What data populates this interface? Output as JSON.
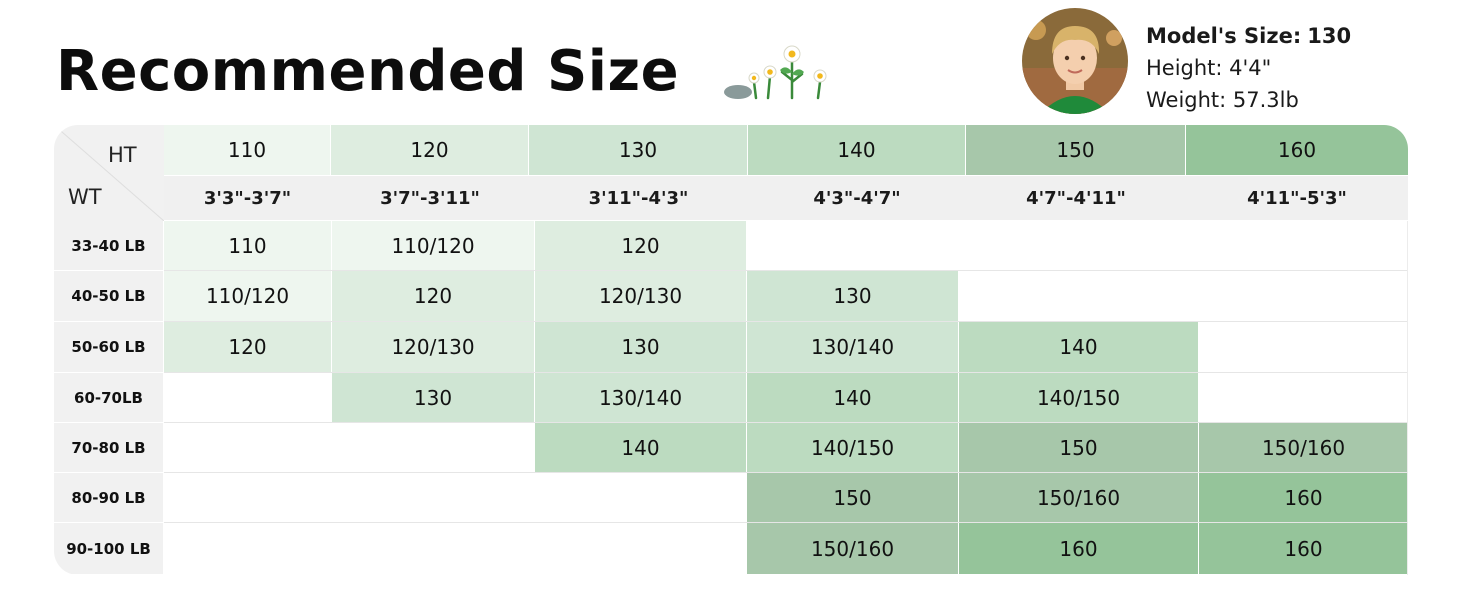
{
  "title": "Recommended Size",
  "model": {
    "size_label": "Model's Size:",
    "size_value": "130",
    "height": "Height: 4'4\"",
    "weight": "Weight: 57.3lb"
  },
  "chart_data": {
    "type": "table",
    "corner": {
      "ht": "HT",
      "wt": "WT"
    },
    "columns": [
      {
        "size": "110",
        "height": "3'3\"-3'7\""
      },
      {
        "size": "120",
        "height": "3'7\"-3'11\""
      },
      {
        "size": "130",
        "height": "3'11\"-4'3\""
      },
      {
        "size": "140",
        "height": "4'3\"-4'7\""
      },
      {
        "size": "150",
        "height": "4'7\"-4'11\""
      },
      {
        "size": "160",
        "height": "4'11\"-5'3\""
      }
    ],
    "rows": [
      {
        "weight": "33-40 LB",
        "cells": [
          "110",
          "110/120",
          "120"
        ]
      },
      {
        "weight": "40-50 LB",
        "cells": [
          "110/120",
          "120",
          "120/130",
          "130"
        ]
      },
      {
        "weight": "50-60 LB",
        "cells": [
          "120",
          "120/130",
          "130",
          "130/140",
          "140"
        ]
      },
      {
        "weight": "60-70LB",
        "cells": [
          "130",
          "130/140",
          "140",
          "140/150"
        ]
      },
      {
        "weight": "70-80 LB",
        "cells": [
          "140",
          "140/150",
          "150",
          "150/160"
        ]
      },
      {
        "weight": "80-90 LB",
        "cells": [
          "150",
          "150/160",
          "160"
        ]
      },
      {
        "weight": "90-100 LB",
        "cells": [
          "150/160",
          "160",
          "160"
        ]
      }
    ]
  },
  "colors": {
    "size_110": "#eef6ef",
    "size_120": "#deede0",
    "size_130": "#cfe5d3",
    "size_140": "#bcdbc0",
    "size_150": "#a7c7aa",
    "size_160": "#95c49a"
  },
  "icons": {
    "decoration": "flowers-icon",
    "avatar": "model-avatar"
  }
}
